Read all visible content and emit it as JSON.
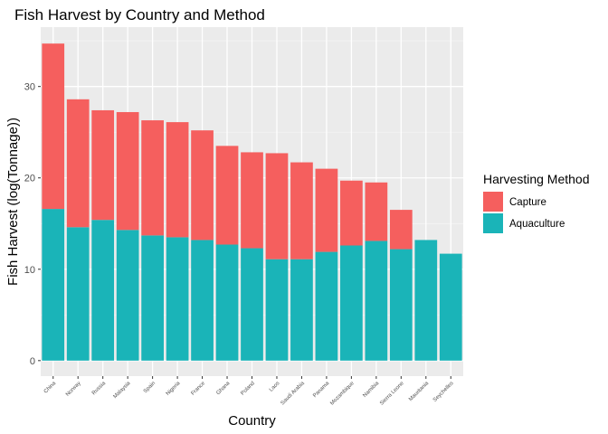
{
  "chart_data": {
    "type": "bar",
    "stacked": true,
    "title": "Fish Harvest by Country and Method",
    "xlabel": "Country",
    "ylabel": "Fish Harvest (log(Tonnage))",
    "ylim": [
      -1.7,
      36.5
    ],
    "yticks": [
      0,
      10,
      20,
      30
    ],
    "grid": true,
    "legend_position": "right",
    "legend_title": "Harvesting Method",
    "categories": [
      "China",
      "Norway",
      "Russia",
      "Malaysia",
      "Spain",
      "Nigeria",
      "France",
      "Ghana",
      "Poland",
      "Laos",
      "Saudi Arabia",
      "Panama",
      "Mozambique",
      "Namibia",
      "Sierra Leone",
      "Mauritania",
      "Seychelles"
    ],
    "series": [
      {
        "name": "Aquaculture",
        "color": "#1ab4b8",
        "values": [
          16.6,
          14.6,
          15.4,
          14.3,
          13.7,
          13.5,
          13.2,
          12.7,
          12.3,
          11.1,
          11.1,
          11.9,
          12.6,
          13.1,
          12.2,
          13.2,
          11.7
        ]
      },
      {
        "name": "Capture",
        "color": "#f55f5e",
        "values": [
          18.1,
          14.0,
          12.0,
          12.9,
          12.6,
          12.6,
          12.0,
          10.8,
          10.5,
          11.6,
          10.6,
          9.1,
          7.1,
          6.4,
          4.3,
          0,
          0
        ]
      }
    ],
    "legend_order": [
      "Capture",
      "Aquaculture"
    ]
  }
}
